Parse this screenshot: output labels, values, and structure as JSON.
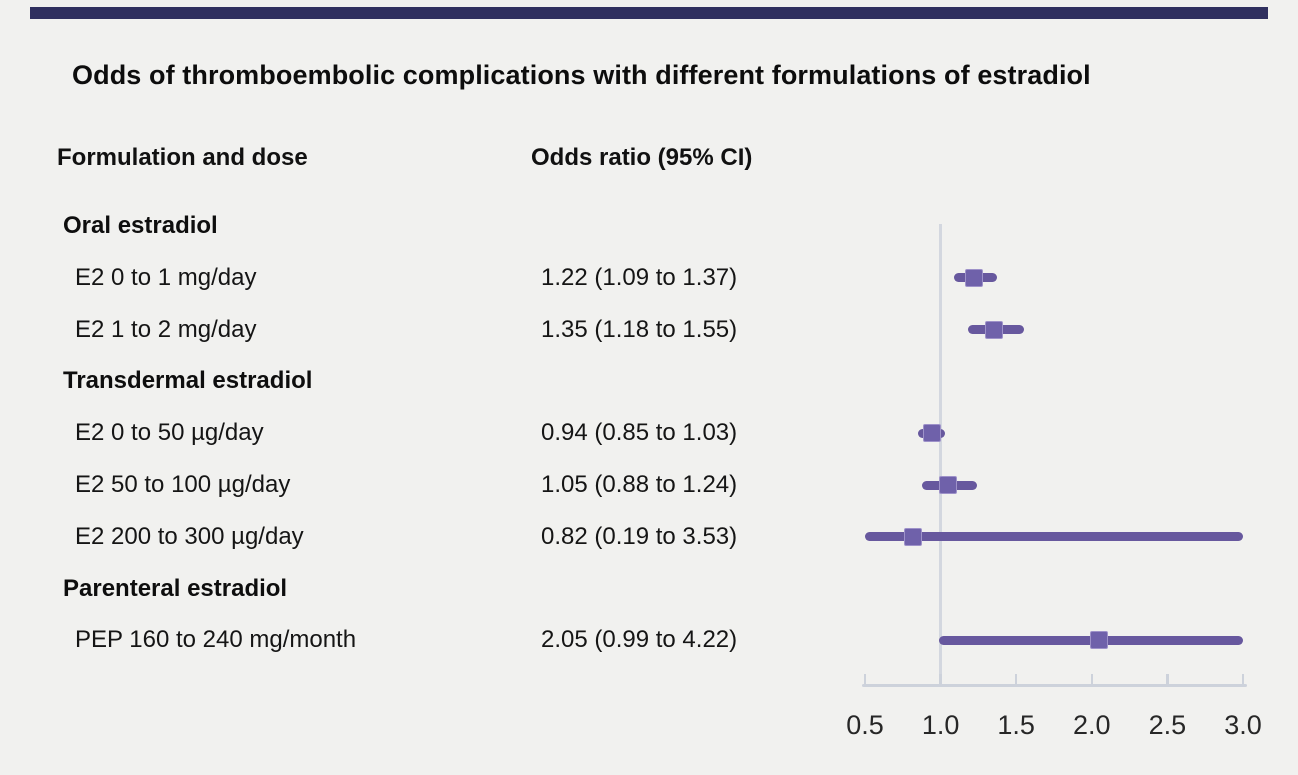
{
  "title": "Odds of thromboembolic complications with different formulations of estradiol",
  "columns": {
    "formulation": "Formulation and dose",
    "odds_ratio": "Odds ratio (95% CI)"
  },
  "colors": {
    "background": "#f1f1ef",
    "top_bar": "#30305f",
    "ci_line": "#67589e",
    "estimate_marker": "#6f61aa",
    "axis": "#cdd2db",
    "reference_line": "#d3d7df",
    "text": "#151515"
  },
  "chart_data": {
    "type": "forest",
    "title": "Odds of thromboembolic complications with different formulations of estradiol",
    "xlabel": "",
    "ylabel": "",
    "legend": "none",
    "grid": false,
    "axis": {
      "min": 0.5,
      "max": 3.0,
      "tick_values": [
        0.5,
        1.0,
        1.5,
        2.0,
        2.5,
        3.0
      ],
      "tick_labels": [
        "0.5",
        "1.0",
        "1.5",
        "2.0",
        "2.5",
        "3.0"
      ],
      "reference_line": 1.0
    },
    "rows": [
      {
        "kind": "group",
        "label": "Oral estradiol"
      },
      {
        "kind": "item",
        "label": "E2 0 to 1 mg/day",
        "or_text": "1.22 (1.09 to 1.37)",
        "est": 1.22,
        "lo": 1.09,
        "hi": 1.37
      },
      {
        "kind": "item",
        "label": "E2 1 to 2 mg/day",
        "or_text": "1.35 (1.18 to 1.55)",
        "est": 1.35,
        "lo": 1.18,
        "hi": 1.55
      },
      {
        "kind": "group",
        "label": "Transdermal estradiol"
      },
      {
        "kind": "item",
        "label": "E2 0 to 50 µg/day",
        "or_text": "0.94 (0.85 to 1.03)",
        "est": 0.94,
        "lo": 0.85,
        "hi": 1.03
      },
      {
        "kind": "item",
        "label": "E2 50 to 100 µg/day",
        "or_text": "1.05 (0.88 to 1.24)",
        "est": 1.05,
        "lo": 0.88,
        "hi": 1.24
      },
      {
        "kind": "item",
        "label": "E2 200 to 300 µg/day",
        "or_text": "0.82 (0.19 to 3.53)",
        "est": 0.82,
        "lo": 0.19,
        "hi": 3.53
      },
      {
        "kind": "group",
        "label": "Parenteral estradiol"
      },
      {
        "kind": "item",
        "label": "PEP 160 to 240 mg/month",
        "or_text": "2.05 (0.99 to 4.22)",
        "est": 2.05,
        "lo": 0.99,
        "hi": 4.22
      }
    ]
  }
}
